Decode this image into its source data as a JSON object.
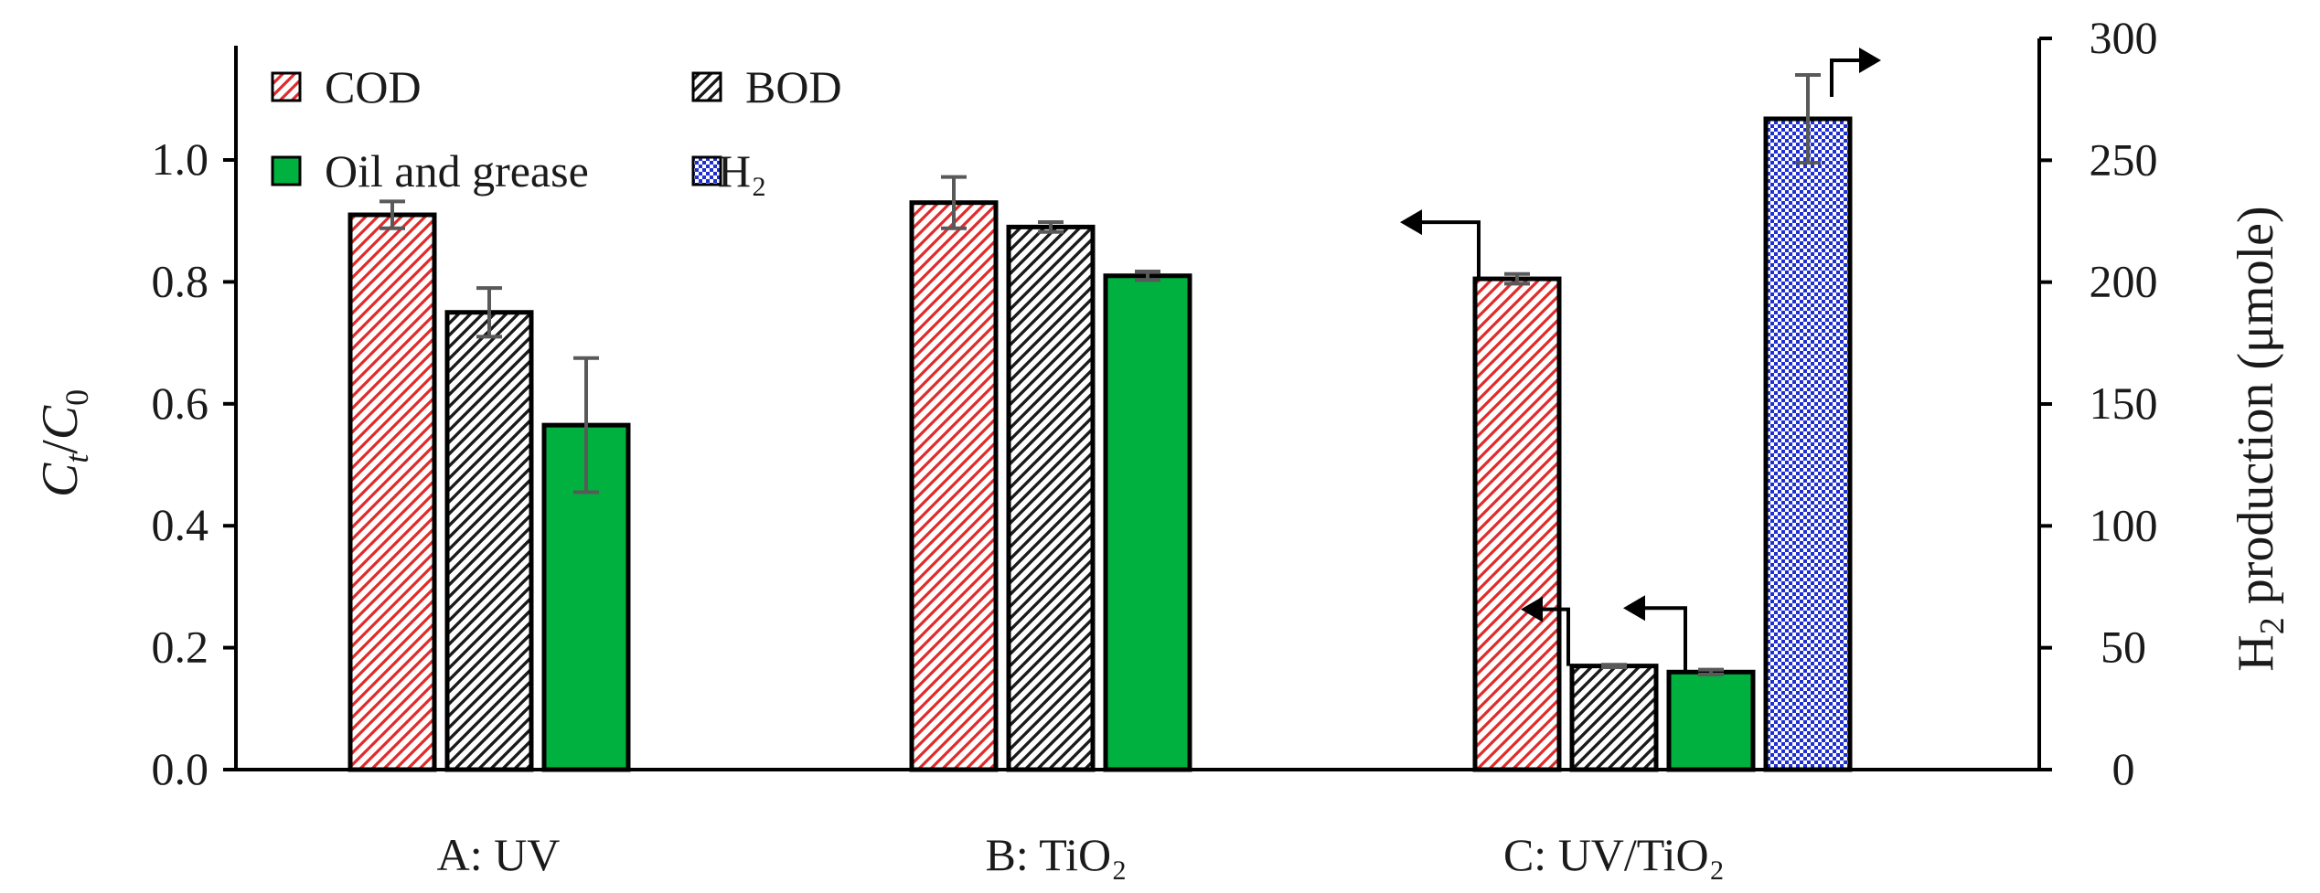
{
  "chart_data": {
    "type": "bar",
    "categories": [
      "A: UV",
      "B: TiO₂",
      "C: UV/TiO₂"
    ],
    "series": [
      {
        "name": "COD",
        "axis": "left",
        "values": [
          0.91,
          0.93,
          0.805
        ],
        "errors": [
          0.022,
          0.042,
          0.008
        ],
        "color": "#e02b2b",
        "pattern": "diagonal-red"
      },
      {
        "name": "BOD",
        "axis": "left",
        "values": [
          0.75,
          0.89,
          0.17
        ],
        "errors": [
          0.04,
          0.008,
          0.002
        ],
        "color": "#000000",
        "pattern": "diagonal-black"
      },
      {
        "name": "Oil and grease",
        "axis": "left",
        "values": [
          0.565,
          0.81,
          0.16
        ],
        "errors": [
          0.11,
          0.007,
          0.004
        ],
        "color": "#00b140",
        "pattern": "solid"
      },
      {
        "name": "H₂",
        "axis": "right",
        "values": [
          null,
          null,
          267
        ],
        "errors": [
          null,
          null,
          18
        ],
        "color": "#1f2fd1",
        "pattern": "dots-blue"
      }
    ],
    "ylabel_left": {
      "main": "C",
      "sub1": "t",
      "slash": "/",
      "main2": "C",
      "sub2": "0"
    },
    "ylabel_right": {
      "pre": "H",
      "sub": "2",
      "post": " production (μmole)"
    },
    "ylim_left": [
      0,
      1.2
    ],
    "ylim_right": [
      0,
      300
    ],
    "yticks_left": [
      "0.0",
      "0.2",
      "0.4",
      "0.6",
      "0.8",
      "1.0"
    ],
    "yticks_right": [
      "0",
      "50",
      "100",
      "150",
      "200",
      "250",
      "300"
    ],
    "legend": {
      "position": "top-left",
      "entries": [
        "COD",
        "BOD",
        "Oil and grease",
        "H₂"
      ]
    },
    "annotations": "arrows indicating the axis each series of C: UV/TiO₂ is read against"
  },
  "colors": {
    "cod": "#e02b2b",
    "bod": "#000000",
    "oil": "#00b140",
    "h2": "#1f2fd1",
    "axis": "#000000",
    "errorbar": "#595959"
  }
}
